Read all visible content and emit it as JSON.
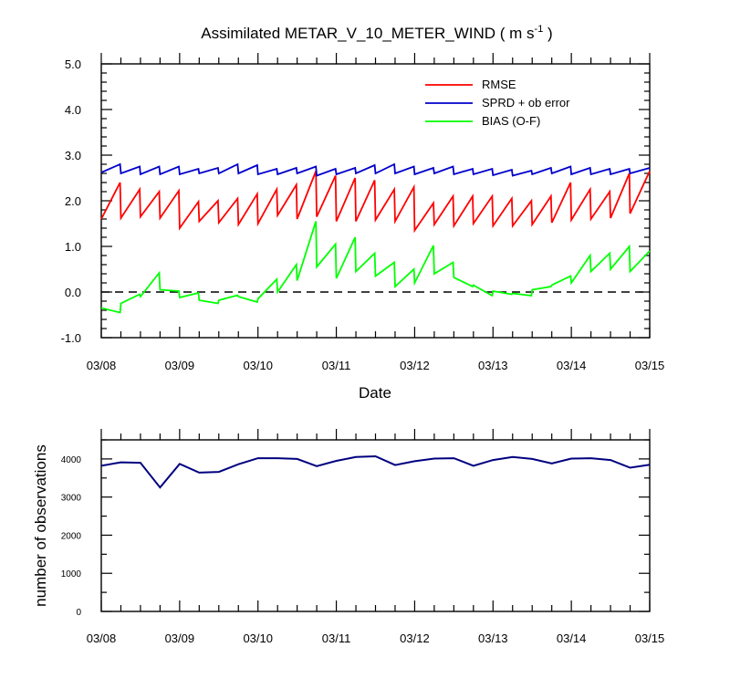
{
  "chart_data": [
    {
      "type": "line",
      "title": "Assimilated METAR_V_10_METER_WIND ( m s",
      "title_sup": "-1",
      "title_end": " )",
      "xlabel": "Date",
      "ylabel": "",
      "xlim": [
        0,
        7
      ],
      "ylim": [
        -1,
        5
      ],
      "yticks": [
        "-1.0",
        "0.0",
        "1.0",
        "2.0",
        "3.0",
        "4.0",
        "5.0"
      ],
      "xticklabels": [
        "03/08",
        "03/09",
        "03/10",
        "03/11",
        "03/12",
        "03/13",
        "03/14",
        "03/15"
      ],
      "legend": "top-right",
      "zero_line": "dashed",
      "x": [
        0.0,
        0.25,
        0.5,
        0.75,
        1.0,
        1.25,
        1.5,
        1.75,
        2.0,
        2.25,
        2.5,
        2.75,
        3.0,
        3.25,
        3.5,
        3.75,
        4.0,
        4.25,
        4.5,
        4.75,
        5.0,
        5.25,
        5.5,
        5.75,
        6.0,
        6.25,
        6.5,
        6.75,
        7.0
      ],
      "series": [
        {
          "name": "RMSE",
          "color": "#ff0000",
          "segments": [
            [
              [
                0.0,
                1.6
              ],
              [
                0.24,
                2.4
              ]
            ],
            [
              [
                0.25,
                1.62
              ],
              [
                0.49,
                2.25
              ]
            ],
            [
              [
                0.5,
                1.65
              ],
              [
                0.74,
                2.2
              ]
            ],
            [
              [
                0.75,
                1.62
              ],
              [
                0.99,
                2.22
              ]
            ],
            [
              [
                1.0,
                1.4
              ],
              [
                1.24,
                1.98
              ]
            ],
            [
              [
                1.25,
                1.55
              ],
              [
                1.49,
                2.0
              ]
            ],
            [
              [
                1.5,
                1.52
              ],
              [
                1.74,
                2.05
              ]
            ],
            [
              [
                1.75,
                1.48
              ],
              [
                1.99,
                2.15
              ]
            ],
            [
              [
                2.0,
                1.5
              ],
              [
                2.24,
                2.25
              ]
            ],
            [
              [
                2.25,
                1.68
              ],
              [
                2.49,
                2.35
              ]
            ],
            [
              [
                2.5,
                1.6
              ],
              [
                2.74,
                2.65
              ]
            ],
            [
              [
                2.75,
                1.65
              ],
              [
                2.99,
                2.55
              ]
            ],
            [
              [
                3.0,
                1.55
              ],
              [
                3.24,
                2.5
              ]
            ],
            [
              [
                3.25,
                1.55
              ],
              [
                3.49,
                2.45
              ]
            ],
            [
              [
                3.5,
                1.58
              ],
              [
                3.74,
                2.25
              ]
            ],
            [
              [
                3.75,
                1.55
              ],
              [
                3.99,
                2.3
              ]
            ],
            [
              [
                4.0,
                1.35
              ],
              [
                4.24,
                1.95
              ]
            ],
            [
              [
                4.25,
                1.48
              ],
              [
                4.49,
                2.1
              ]
            ],
            [
              [
                4.5,
                1.45
              ],
              [
                4.74,
                2.1
              ]
            ],
            [
              [
                4.75,
                1.5
              ],
              [
                4.99,
                2.1
              ]
            ],
            [
              [
                5.0,
                1.45
              ],
              [
                5.24,
                2.05
              ]
            ],
            [
              [
                5.25,
                1.45
              ],
              [
                5.49,
                2.0
              ]
            ],
            [
              [
                5.5,
                1.48
              ],
              [
                5.74,
                2.1
              ]
            ],
            [
              [
                5.75,
                1.52
              ],
              [
                5.99,
                2.4
              ]
            ],
            [
              [
                6.0,
                1.58
              ],
              [
                6.24,
                2.25
              ]
            ],
            [
              [
                6.25,
                1.6
              ],
              [
                6.49,
                2.2
              ]
            ],
            [
              [
                6.5,
                1.62
              ],
              [
                6.74,
                2.6
              ]
            ],
            [
              [
                6.75,
                1.72
              ],
              [
                7.0,
                2.65
              ]
            ]
          ]
        },
        {
          "name": "SPRD + ob error",
          "color": "#0000cc",
          "segments": [
            [
              [
                0.0,
                2.62
              ],
              [
                0.24,
                2.8
              ]
            ],
            [
              [
                0.25,
                2.6
              ],
              [
                0.49,
                2.75
              ]
            ],
            [
              [
                0.5,
                2.58
              ],
              [
                0.74,
                2.75
              ]
            ],
            [
              [
                0.75,
                2.58
              ],
              [
                0.99,
                2.75
              ]
            ],
            [
              [
                1.0,
                2.58
              ],
              [
                1.24,
                2.7
              ]
            ],
            [
              [
                1.25,
                2.6
              ],
              [
                1.49,
                2.72
              ]
            ],
            [
              [
                1.5,
                2.6
              ],
              [
                1.74,
                2.8
              ]
            ],
            [
              [
                1.75,
                2.6
              ],
              [
                1.99,
                2.78
              ]
            ],
            [
              [
                2.0,
                2.58
              ],
              [
                2.24,
                2.7
              ]
            ],
            [
              [
                2.25,
                2.58
              ],
              [
                2.49,
                2.72
              ]
            ],
            [
              [
                2.5,
                2.6
              ],
              [
                2.74,
                2.75
              ]
            ],
            [
              [
                2.75,
                2.55
              ],
              [
                2.99,
                2.7
              ]
            ],
            [
              [
                3.0,
                2.58
              ],
              [
                3.24,
                2.72
              ]
            ],
            [
              [
                3.25,
                2.6
              ],
              [
                3.49,
                2.78
              ]
            ],
            [
              [
                3.5,
                2.6
              ],
              [
                3.74,
                2.8
              ]
            ],
            [
              [
                3.75,
                2.6
              ],
              [
                3.99,
                2.75
              ]
            ],
            [
              [
                4.0,
                2.58
              ],
              [
                4.24,
                2.72
              ]
            ],
            [
              [
                4.25,
                2.6
              ],
              [
                4.49,
                2.75
              ]
            ],
            [
              [
                4.5,
                2.58
              ],
              [
                4.74,
                2.7
              ]
            ],
            [
              [
                4.75,
                2.58
              ],
              [
                4.99,
                2.7
              ]
            ],
            [
              [
                5.0,
                2.56
              ],
              [
                5.24,
                2.68
              ]
            ],
            [
              [
                5.25,
                2.55
              ],
              [
                5.49,
                2.66
              ]
            ],
            [
              [
                5.5,
                2.58
              ],
              [
                5.74,
                2.72
              ]
            ],
            [
              [
                5.75,
                2.6
              ],
              [
                5.99,
                2.75
              ]
            ],
            [
              [
                6.0,
                2.58
              ],
              [
                6.24,
                2.72
              ]
            ],
            [
              [
                6.25,
                2.58
              ],
              [
                6.49,
                2.7
              ]
            ],
            [
              [
                6.5,
                2.58
              ],
              [
                6.74,
                2.7
              ]
            ],
            [
              [
                6.75,
                2.6
              ],
              [
                7.0,
                2.72
              ]
            ]
          ]
        },
        {
          "name": "BIAS (O-F)",
          "color": "#00ff00",
          "segments": [
            [
              [
                0.0,
                -0.35
              ],
              [
                0.24,
                -0.45
              ]
            ],
            [
              [
                0.25,
                -0.25
              ],
              [
                0.49,
                -0.05
              ]
            ],
            [
              [
                0.5,
                -0.1
              ],
              [
                0.74,
                0.42
              ]
            ],
            [
              [
                0.75,
                0.05
              ],
              [
                0.99,
                0.02
              ]
            ],
            [
              [
                1.0,
                -0.12
              ],
              [
                1.24,
                -0.02
              ]
            ],
            [
              [
                1.25,
                -0.18
              ],
              [
                1.49,
                -0.25
              ]
            ],
            [
              [
                1.5,
                -0.18
              ],
              [
                1.74,
                -0.07
              ]
            ],
            [
              [
                1.75,
                -0.1
              ],
              [
                1.99,
                -0.22
              ]
            ],
            [
              [
                2.0,
                -0.15
              ],
              [
                2.24,
                0.28
              ]
            ],
            [
              [
                2.25,
                0.0
              ],
              [
                2.49,
                0.6
              ]
            ],
            [
              [
                2.5,
                0.25
              ],
              [
                2.74,
                1.55
              ]
            ],
            [
              [
                2.75,
                0.55
              ],
              [
                2.99,
                1.05
              ]
            ],
            [
              [
                3.0,
                0.3
              ],
              [
                3.24,
                1.2
              ]
            ],
            [
              [
                3.25,
                0.45
              ],
              [
                3.49,
                0.85
              ]
            ],
            [
              [
                3.5,
                0.35
              ],
              [
                3.74,
                0.65
              ]
            ],
            [
              [
                3.75,
                0.12
              ],
              [
                3.99,
                0.5
              ]
            ],
            [
              [
                4.0,
                0.2
              ],
              [
                4.24,
                1.02
              ]
            ],
            [
              [
                4.25,
                0.4
              ],
              [
                4.49,
                0.65
              ]
            ],
            [
              [
                4.5,
                0.32
              ],
              [
                4.74,
                0.12
              ]
            ],
            [
              [
                4.75,
                0.15
              ],
              [
                4.99,
                -0.08
              ]
            ],
            [
              [
                5.0,
                0.02
              ],
              [
                5.24,
                -0.05
              ]
            ],
            [
              [
                5.25,
                -0.03
              ],
              [
                5.49,
                -0.08
              ]
            ],
            [
              [
                5.5,
                0.05
              ],
              [
                5.74,
                0.12
              ]
            ],
            [
              [
                5.75,
                0.15
              ],
              [
                5.99,
                0.35
              ]
            ],
            [
              [
                6.0,
                0.2
              ],
              [
                6.24,
                0.8
              ]
            ],
            [
              [
                6.25,
                0.45
              ],
              [
                6.49,
                0.85
              ]
            ],
            [
              [
                6.5,
                0.5
              ],
              [
                6.74,
                1.0
              ]
            ],
            [
              [
                6.75,
                0.45
              ],
              [
                7.0,
                0.9
              ]
            ]
          ]
        }
      ]
    },
    {
      "type": "line",
      "title": "",
      "xlabel": "",
      "ylabel": "number of observations",
      "xlim": [
        0,
        7
      ],
      "ylim": [
        0,
        4500
      ],
      "yticks": [
        "0",
        "1000",
        "2000",
        "3000",
        "4000"
      ],
      "xticklabels": [
        "03/08",
        "03/09",
        "03/10",
        "03/11",
        "03/12",
        "03/13",
        "03/14",
        "03/15"
      ],
      "x": [
        0.0,
        0.25,
        0.5,
        0.75,
        1.0,
        1.25,
        1.5,
        1.75,
        2.0,
        2.25,
        2.5,
        2.75,
        3.0,
        3.25,
        3.5,
        3.75,
        4.0,
        4.25,
        4.5,
        4.75,
        5.0,
        5.25,
        5.5,
        5.75,
        6.0,
        6.25,
        6.5,
        6.75,
        7.0
      ],
      "series": [
        {
          "name": "",
          "color": "#000080",
          "values": [
            3820,
            3910,
            3900,
            3250,
            3870,
            3640,
            3660,
            3860,
            4020,
            4020,
            4000,
            3810,
            3950,
            4050,
            4070,
            3840,
            3940,
            4010,
            4020,
            3820,
            3970,
            4050,
            4000,
            3880,
            4010,
            4020,
            3970,
            3770,
            3850
          ]
        }
      ]
    }
  ]
}
